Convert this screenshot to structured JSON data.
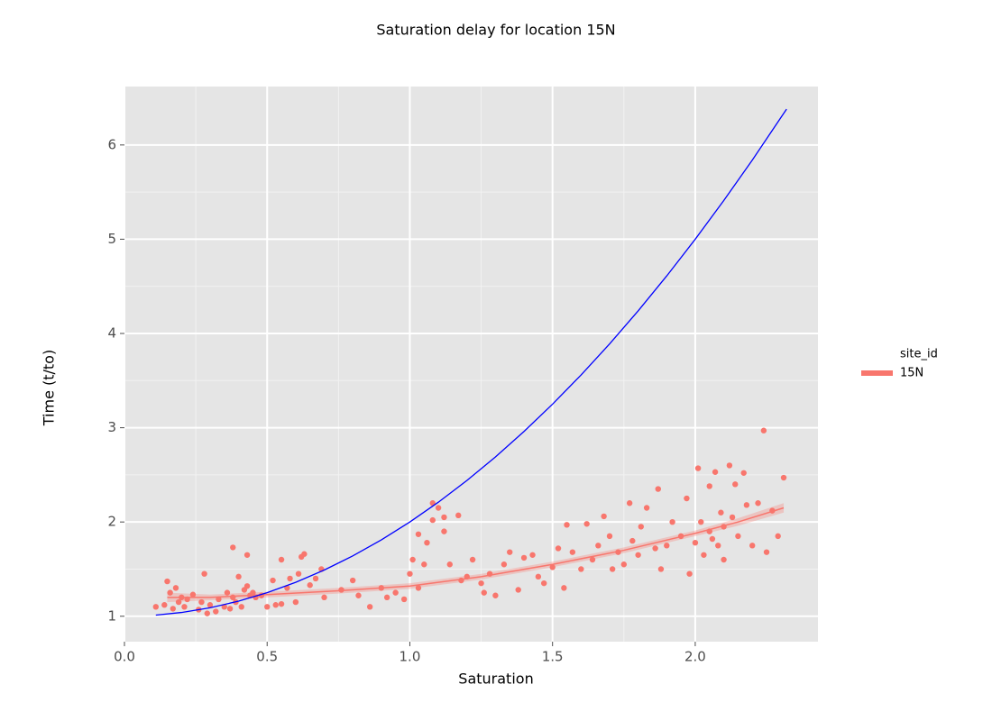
{
  "chart_data": {
    "type": "scatter",
    "title": "Saturation delay for location 15N",
    "xlabel": "Saturation",
    "ylabel": "Time (t/to)",
    "legend_title": "site_id",
    "legend_position": "right",
    "grid": true,
    "background": "#e5e5e5",
    "xlim": [
      0,
      2.43
    ],
    "ylim": [
      0.73,
      6.62
    ],
    "xticks": [
      {
        "value": 0,
        "label": "0.0"
      },
      0.5,
      {
        "value": 1,
        "label": "1.0"
      },
      1.5,
      {
        "value": 2,
        "label": "2.0"
      }
    ],
    "yticks": [
      1,
      2,
      3,
      4,
      5,
      6
    ],
    "series": [
      {
        "name": "15N",
        "color": "#f8766d",
        "x": [
          0.11,
          0.14,
          0.15,
          0.16,
          0.17,
          0.18,
          0.19,
          0.2,
          0.21,
          0.22,
          0.24,
          0.26,
          0.27,
          0.28,
          0.29,
          0.3,
          0.32,
          0.33,
          0.35,
          0.36,
          0.37,
          0.38,
          0.38,
          0.39,
          0.4,
          0.41,
          0.42,
          0.43,
          0.43,
          0.44,
          0.45,
          0.46,
          0.48,
          0.5,
          0.52,
          0.53,
          0.55,
          0.55,
          0.57,
          0.58,
          0.6,
          0.61,
          0.62,
          0.63,
          0.65,
          0.67,
          0.69,
          0.7,
          0.76,
          0.8,
          0.82,
          0.86,
          0.9,
          0.92,
          0.95,
          0.98,
          1.0,
          1.01,
          1.03,
          1.03,
          1.05,
          1.06,
          1.08,
          1.08,
          1.1,
          1.12,
          1.12,
          1.14,
          1.17,
          1.18,
          1.2,
          1.22,
          1.25,
          1.26,
          1.28,
          1.3,
          1.33,
          1.35,
          1.38,
          1.4,
          1.43,
          1.45,
          1.47,
          1.5,
          1.52,
          1.54,
          1.55,
          1.57,
          1.6,
          1.62,
          1.64,
          1.66,
          1.68,
          1.7,
          1.71,
          1.73,
          1.75,
          1.77,
          1.78,
          1.8,
          1.81,
          1.83,
          1.86,
          1.87,
          1.88,
          1.9,
          1.92,
          1.95,
          1.97,
          1.98,
          2.0,
          2.01,
          2.02,
          2.03,
          2.05,
          2.05,
          2.06,
          2.07,
          2.08,
          2.09,
          2.1,
          2.1,
          2.12,
          2.13,
          2.14,
          2.15,
          2.17,
          2.18,
          2.2,
          2.22,
          2.24,
          2.25,
          2.27,
          2.29,
          2.31
        ],
        "y": [
          1.1,
          1.12,
          1.37,
          1.25,
          1.08,
          1.3,
          1.15,
          1.2,
          1.1,
          1.18,
          1.23,
          1.07,
          1.15,
          1.45,
          1.03,
          1.12,
          1.05,
          1.18,
          1.1,
          1.25,
          1.08,
          1.73,
          1.2,
          1.15,
          1.42,
          1.1,
          1.28,
          1.65,
          1.32,
          1.22,
          1.25,
          1.2,
          1.22,
          1.1,
          1.38,
          1.12,
          1.6,
          1.13,
          1.3,
          1.4,
          1.15,
          1.45,
          1.63,
          1.66,
          1.33,
          1.4,
          1.5,
          1.2,
          1.28,
          1.38,
          1.22,
          1.1,
          1.3,
          1.2,
          1.25,
          1.18,
          1.45,
          1.6,
          1.87,
          1.3,
          1.55,
          1.78,
          2.02,
          2.2,
          2.15,
          1.9,
          2.05,
          1.55,
          2.07,
          1.38,
          1.42,
          1.6,
          1.35,
          1.25,
          1.45,
          1.22,
          1.55,
          1.68,
          1.28,
          1.62,
          1.65,
          1.42,
          1.35,
          1.52,
          1.72,
          1.3,
          1.97,
          1.68,
          1.5,
          1.98,
          1.6,
          1.75,
          2.06,
          1.85,
          1.5,
          1.68,
          1.55,
          2.2,
          1.8,
          1.65,
          1.95,
          2.15,
          1.72,
          2.35,
          1.5,
          1.75,
          2.0,
          1.85,
          2.25,
          1.45,
          1.78,
          2.57,
          2.0,
          1.65,
          2.38,
          1.9,
          1.82,
          2.53,
          1.75,
          2.1,
          1.95,
          1.6,
          2.6,
          2.05,
          2.4,
          1.85,
          2.52,
          2.18,
          1.75,
          2.2,
          2.97,
          1.68,
          2.12,
          1.85,
          2.47
        ]
      }
    ],
    "smooth": {
      "color": "#f8766d",
      "x": [
        0.15,
        0.3,
        0.5,
        0.75,
        1.0,
        1.25,
        1.5,
        1.75,
        2.0,
        2.15,
        2.31
      ],
      "y": [
        1.2,
        1.2,
        1.23,
        1.27,
        1.32,
        1.42,
        1.55,
        1.7,
        1.88,
        2.0,
        2.15
      ],
      "lower": [
        1.15,
        1.17,
        1.2,
        1.24,
        1.29,
        1.39,
        1.52,
        1.67,
        1.85,
        1.96,
        2.1
      ],
      "upper": [
        1.25,
        1.23,
        1.26,
        1.3,
        1.35,
        1.45,
        1.58,
        1.73,
        1.91,
        2.04,
        2.2
      ]
    },
    "lines": [
      {
        "color": "#0000ff",
        "x": [
          0.11,
          0.2,
          0.3,
          0.4,
          0.5,
          0.6,
          0.7,
          0.8,
          0.9,
          1.0,
          1.1,
          1.2,
          1.3,
          1.4,
          1.5,
          1.6,
          1.7,
          1.8,
          1.9,
          2.0,
          2.1,
          2.2,
          2.3,
          2.32
        ],
        "y": [
          1.012,
          1.04,
          1.09,
          1.16,
          1.25,
          1.36,
          1.49,
          1.64,
          1.81,
          2,
          2.21,
          2.44,
          2.69,
          2.96,
          3.25,
          3.56,
          3.89,
          4.24,
          4.61,
          5,
          5.41,
          5.84,
          6.29,
          6.38
        ]
      }
    ]
  }
}
